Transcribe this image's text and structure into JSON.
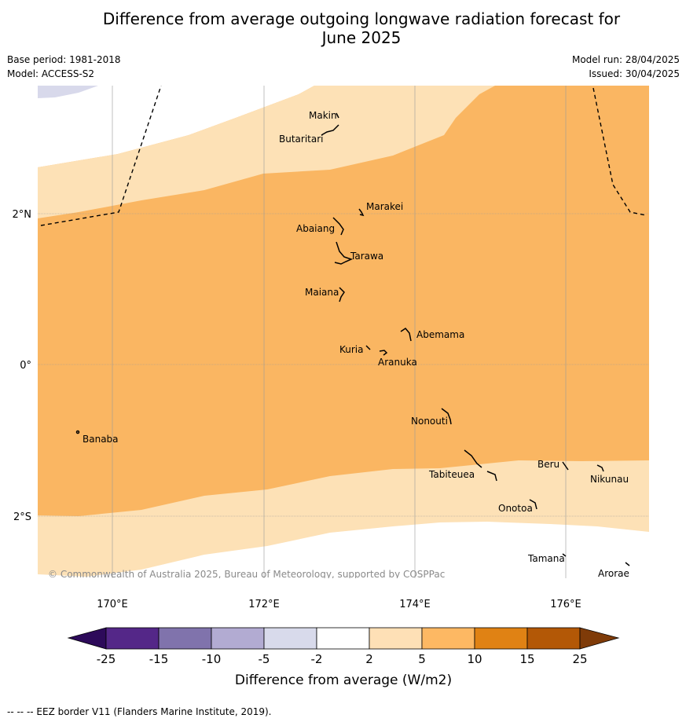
{
  "header": {
    "title_line1": "Difference from average outgoing longwave radiation forecast for",
    "title_line2": "June 2025",
    "base_period": "Base period: 1981-2018",
    "model": "Model: ACCESS-S2",
    "model_run": "Model run: 28/04/2025",
    "issued": "Issued: 30/04/2025"
  },
  "map": {
    "lon_labels": [
      "170°E",
      "172°E",
      "174°E",
      "176°E"
    ],
    "lat_labels": [
      "2°N",
      "0°",
      "2°S"
    ],
    "copyright": "© Commonwealth of Australia 2025, Bureau of Meteorology, supported by COSPPac",
    "places": [
      "Makin",
      "Butaritari",
      "Marakei",
      "Abaiang",
      "Tarawa",
      "Maiana",
      "Abemama",
      "Kuria",
      "Aranuka",
      "Nonouti",
      "Banaba",
      "Tabiteuea",
      "Beru",
      "Nikunau",
      "Onotoa",
      "Tamana",
      "Arorae"
    ],
    "colors": {
      "ocean_band_light": "#fde1b6",
      "ocean_band_mid": "#fab662",
      "negative_band": "#d8d9eb",
      "gridline": "#999999"
    }
  },
  "legend": {
    "title": "Difference from average (W/m2)",
    "ticks": [
      "-25",
      "-15",
      "-10",
      "-5",
      "-2",
      "2",
      "5",
      "10",
      "15",
      "25"
    ],
    "colors": [
      "#2d0a5a",
      "#542788",
      "#8073ac",
      "#b2abd2",
      "#d8daeb",
      "#ffffff",
      "#fee0b6",
      "#fdb863",
      "#e08214",
      "#b35806",
      "#7f3b08"
    ]
  },
  "footnote": "-- -- -- EEZ border V11 (Flanders Marine Institute, 2019)."
}
